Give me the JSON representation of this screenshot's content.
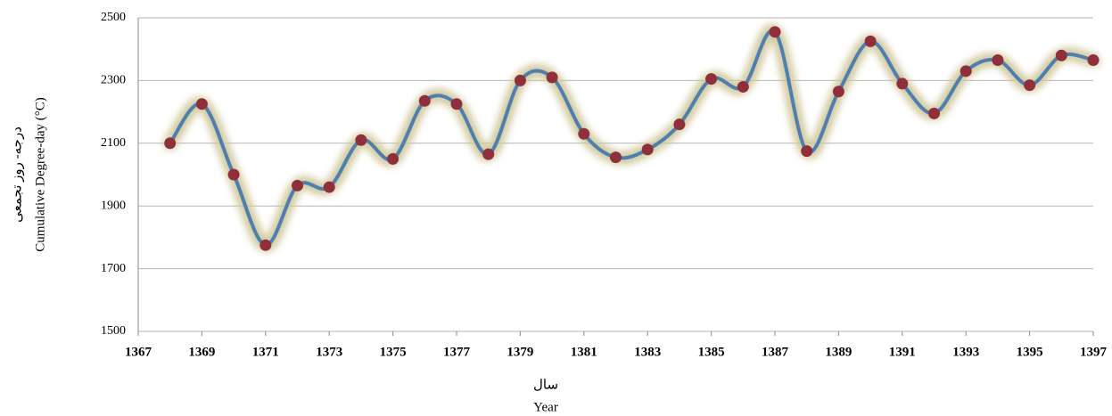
{
  "chart_data": {
    "type": "line",
    "xlabel_fa": "سال",
    "xlabel": "Year",
    "ylabel_fa": "درجه- روز تجمعی",
    "ylabel": "Cumulative Degree-day  (°C)",
    "x": [
      1368,
      1369,
      1370,
      1371,
      1372,
      1373,
      1374,
      1375,
      1376,
      1377,
      1378,
      1379,
      1380,
      1381,
      1382,
      1383,
      1384,
      1385,
      1386,
      1387,
      1388,
      1389,
      1390,
      1391,
      1392,
      1393,
      1394,
      1395,
      1396,
      1397
    ],
    "values": [
      2100,
      2225,
      2000,
      1775,
      1965,
      1960,
      2110,
      2050,
      2235,
      2225,
      2065,
      2300,
      2310,
      2130,
      2055,
      2080,
      2160,
      2305,
      2280,
      2455,
      2075,
      2265,
      2425,
      2290,
      2195,
      2330,
      2365,
      2285,
      2380,
      2365
    ],
    "line_color": "#4f7fb0",
    "marker_color": "#8e2f3b",
    "glow_color": "#cfc79a",
    "xlim": [
      1367,
      1397
    ],
    "xticks": [
      1367,
      1369,
      1371,
      1373,
      1375,
      1377,
      1379,
      1381,
      1383,
      1385,
      1387,
      1389,
      1391,
      1393,
      1395,
      1397
    ],
    "ylim": [
      1500,
      2500
    ],
    "yticks": [
      1500,
      1700,
      1900,
      2100,
      2300,
      2500
    ],
    "grid": true,
    "smooth": true
  }
}
